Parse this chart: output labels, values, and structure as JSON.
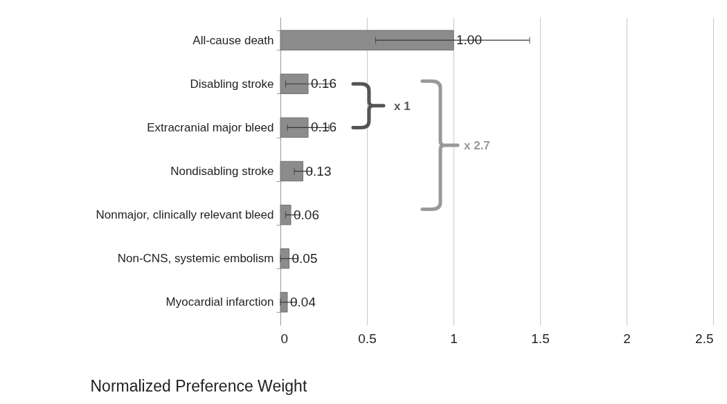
{
  "chart_data": {
    "type": "bar",
    "orientation": "horizontal",
    "categories": [
      "All-cause death",
      "Disabling stroke",
      "Extracranial major bleed",
      "Nondisabling stroke",
      "Nonmajor, clinically relevant bleed",
      "Non-CNS, systemic embolism",
      "Myocardial infarction"
    ],
    "values": [
      1.0,
      0.16,
      0.16,
      0.13,
      0.06,
      0.05,
      0.04
    ],
    "value_labels": [
      "1.00",
      "0.16",
      "0.16",
      "0.13",
      "0.06",
      "0.05",
      "0.04"
    ],
    "errors": [
      [
        0.55,
        1.44
      ],
      [
        0.03,
        0.29
      ],
      [
        0.04,
        0.28
      ],
      [
        0.08,
        0.18
      ],
      [
        0.03,
        0.11
      ],
      [
        0.0,
        0.1
      ],
      [
        0.0,
        0.09
      ]
    ],
    "color": "#8c8c8c",
    "xlabel": "Normalized Preference Weight",
    "xlim": [
      0,
      2.5
    ],
    "xticks": [
      0,
      0.5,
      1,
      1.5,
      2,
      2.5
    ],
    "grid": "x",
    "annotations": [
      "x 1",
      "x 2.7"
    ]
  }
}
